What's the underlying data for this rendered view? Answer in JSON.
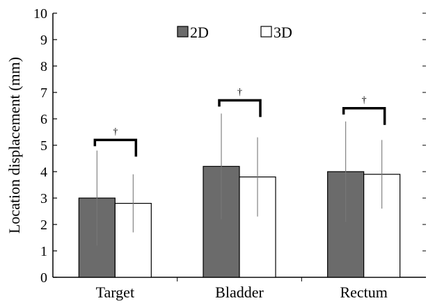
{
  "chart_data": {
    "type": "bar",
    "title": "",
    "xlabel": "",
    "ylabel": "Location displacement (mm)",
    "ylim": [
      0,
      10
    ],
    "yticks": [
      "0",
      "1",
      "2",
      "3",
      "4",
      "5",
      "6",
      "7",
      "8",
      "9",
      "10"
    ],
    "categories": [
      "Target",
      "Bladder",
      "Rectum"
    ],
    "series": [
      {
        "name": "2D",
        "values": [
          3.0,
          4.2,
          4.0
        ],
        "error": [
          1.8,
          2.0,
          1.9
        ],
        "color": "#6b6b6b"
      },
      {
        "name": "3D",
        "values": [
          2.8,
          3.8,
          3.9
        ],
        "error": [
          1.1,
          1.5,
          1.3
        ],
        "color": "#ffffff"
      }
    ],
    "significance": [
      {
        "category": "Target",
        "symbol": "†",
        "level": 5.2
      },
      {
        "category": "Bladder",
        "symbol": "†",
        "level": 6.7
      },
      {
        "category": "Rectum",
        "symbol": "†",
        "level": 6.4
      }
    ],
    "legend_position": "top-center",
    "grid": false
  }
}
